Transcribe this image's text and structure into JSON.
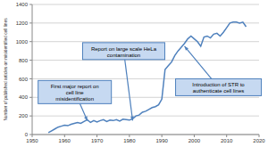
{
  "chart_data": {
    "type": "line",
    "y_label": "Number of published articles on misidentified cell lines",
    "x": [
      1955,
      1956,
      1957,
      1958,
      1959,
      1960,
      1961,
      1962,
      1963,
      1964,
      1965,
      1966,
      1967,
      1968,
      1969,
      1970,
      1971,
      1972,
      1973,
      1974,
      1975,
      1976,
      1977,
      1978,
      1979,
      1980,
      1981,
      1982,
      1983,
      1984,
      1985,
      1986,
      1987,
      1988,
      1989,
      1990,
      1991,
      1992,
      1993,
      1994,
      1995,
      1996,
      1997,
      1998,
      1999,
      2000,
      2001,
      2002,
      2003,
      2004,
      2005,
      2006,
      2007,
      2008,
      2009,
      2010,
      2011,
      2012,
      2013,
      2014,
      2015,
      2016
    ],
    "values": [
      20,
      40,
      60,
      80,
      90,
      100,
      95,
      110,
      120,
      130,
      120,
      140,
      160,
      130,
      150,
      135,
      150,
      160,
      140,
      155,
      150,
      160,
      145,
      165,
      160,
      155,
      170,
      200,
      210,
      240,
      250,
      270,
      290,
      300,
      320,
      380,
      700,
      740,
      780,
      850,
      900,
      940,
      980,
      1030,
      1060,
      1030,
      1000,
      950,
      1050,
      1060,
      1040,
      1080,
      1090,
      1060,
      1100,
      1150,
      1200,
      1210,
      1210,
      1200,
      1210,
      1160
    ],
    "color": "#4f81bd",
    "xlim": [
      1950,
      2020
    ],
    "xticks": [
      1950,
      1960,
      1970,
      1980,
      1990,
      2000,
      2010,
      2020
    ],
    "ylim": [
      0,
      1400
    ],
    "yticks": [
      0,
      200,
      400,
      600,
      800,
      1000,
      1200,
      1400
    ],
    "grid": true,
    "annotations": [
      {
        "text": "First major report on cell line misidentification",
        "x": 1967,
        "y": 150
      },
      {
        "text": "Report on large scale HeLa contamination",
        "x": 1981,
        "y": 150
      },
      {
        "text": "Introduction of STR to authenticate cell lines",
        "x": 1997,
        "y": 950
      }
    ]
  }
}
